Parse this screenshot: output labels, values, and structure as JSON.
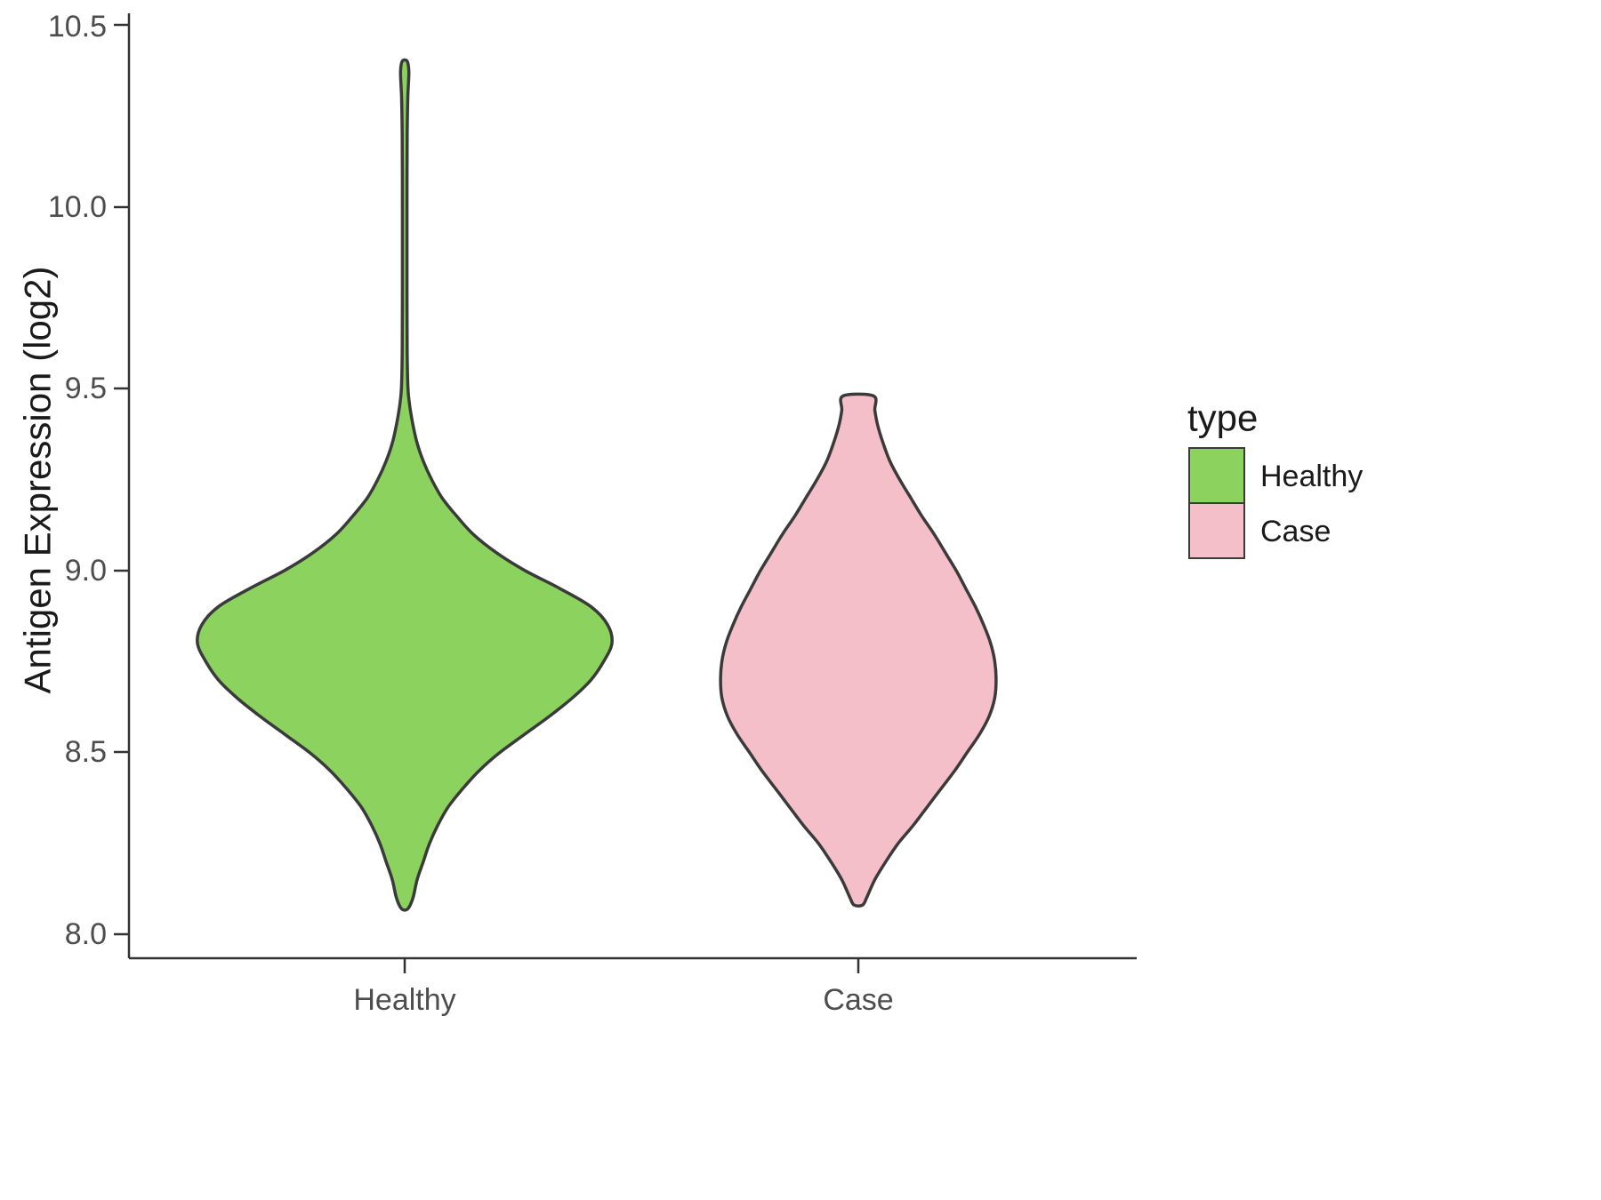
{
  "chart_data": {
    "type": "violin",
    "title": "",
    "xlabel": "",
    "ylabel": "Antigen Expression (log2)",
    "ylim": [
      8.0,
      10.5
    ],
    "y_ticks": [
      {
        "value": 8.0,
        "label": "8.0"
      },
      {
        "value": 8.5,
        "label": "8.5"
      },
      {
        "value": 9.0,
        "label": "9.0"
      },
      {
        "value": 9.5,
        "label": "9.5"
      },
      {
        "value": 10.0,
        "label": "10.0"
      },
      {
        "value": 10.5,
        "label": "10.5"
      }
    ],
    "categories": [
      "Healthy",
      "Case"
    ],
    "legend": {
      "title": "type",
      "position": "right",
      "entries": [
        {
          "label": "Healthy",
          "color": "#8cd25e"
        },
        {
          "label": "Case",
          "color": "#f5bfca"
        }
      ]
    },
    "colors": {
      "outline": "#3a3a3a",
      "axis": "#333333",
      "tick_text": "#4d4d4d",
      "title_text": "#1a1a1a",
      "background": "#ffffff"
    },
    "series": [
      {
        "name": "Healthy",
        "color": "#8cd25e",
        "y_range": [
          8.07,
          10.4
        ],
        "relative_max_width": 1.0,
        "density": [
          [
            8.07,
            0.015
          ],
          [
            8.1,
            0.04
          ],
          [
            8.15,
            0.06
          ],
          [
            8.2,
            0.09
          ],
          [
            8.25,
            0.12
          ],
          [
            8.3,
            0.16
          ],
          [
            8.35,
            0.21
          ],
          [
            8.4,
            0.28
          ],
          [
            8.45,
            0.36
          ],
          [
            8.5,
            0.46
          ],
          [
            8.55,
            0.58
          ],
          [
            8.6,
            0.7
          ],
          [
            8.65,
            0.81
          ],
          [
            8.7,
            0.9
          ],
          [
            8.75,
            0.96
          ],
          [
            8.8,
            1.0
          ],
          [
            8.85,
            0.98
          ],
          [
            8.9,
            0.9
          ],
          [
            8.95,
            0.75
          ],
          [
            9.0,
            0.58
          ],
          [
            9.05,
            0.44
          ],
          [
            9.1,
            0.33
          ],
          [
            9.15,
            0.25
          ],
          [
            9.2,
            0.18
          ],
          [
            9.25,
            0.13
          ],
          [
            9.3,
            0.09
          ],
          [
            9.35,
            0.06
          ],
          [
            9.4,
            0.04
          ],
          [
            9.45,
            0.025
          ],
          [
            9.5,
            0.016
          ],
          [
            9.6,
            0.012
          ],
          [
            9.8,
            0.011
          ],
          [
            10.0,
            0.011
          ],
          [
            10.2,
            0.012
          ],
          [
            10.3,
            0.015
          ],
          [
            10.37,
            0.02
          ],
          [
            10.4,
            0.012
          ]
        ]
      },
      {
        "name": "Case",
        "color": "#f5bfca",
        "y_range": [
          8.08,
          9.48
        ],
        "relative_max_width": 0.665,
        "density": [
          [
            8.08,
            0.03
          ],
          [
            8.1,
            0.06
          ],
          [
            8.15,
            0.12
          ],
          [
            8.2,
            0.2
          ],
          [
            8.25,
            0.29
          ],
          [
            8.3,
            0.4
          ],
          [
            8.35,
            0.5
          ],
          [
            8.4,
            0.6
          ],
          [
            8.45,
            0.7
          ],
          [
            8.5,
            0.79
          ],
          [
            8.55,
            0.88
          ],
          [
            8.6,
            0.95
          ],
          [
            8.65,
            0.99
          ],
          [
            8.7,
            1.0
          ],
          [
            8.75,
            0.99
          ],
          [
            8.8,
            0.96
          ],
          [
            8.85,
            0.91
          ],
          [
            8.9,
            0.85
          ],
          [
            8.95,
            0.78
          ],
          [
            9.0,
            0.71
          ],
          [
            9.05,
            0.63
          ],
          [
            9.1,
            0.55
          ],
          [
            9.15,
            0.46
          ],
          [
            9.2,
            0.38
          ],
          [
            9.25,
            0.3
          ],
          [
            9.3,
            0.23
          ],
          [
            9.35,
            0.18
          ],
          [
            9.4,
            0.14
          ],
          [
            9.44,
            0.12
          ],
          [
            9.48,
            0.11
          ]
        ]
      }
    ]
  }
}
